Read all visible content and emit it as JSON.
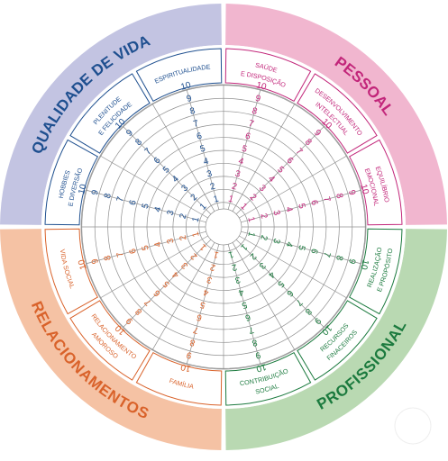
{
  "quadrants": [
    {
      "key": "qualidade",
      "label": "QUALIDADE DE VIDA",
      "fill": "#c3c4e2",
      "ink": "#1e4f8f"
    },
    {
      "key": "pessoal",
      "label": "PESSOAL",
      "fill": "#f1b6cf",
      "ink": "#c2267a"
    },
    {
      "key": "profissional",
      "label": "PROFISSIONAL",
      "fill": "#b9d9b2",
      "ink": "#1b7a3e"
    },
    {
      "key": "relacionamentos",
      "label": "RELACIONAMENTOS",
      "fill": "#f5c2a4",
      "ink": "#d9622a"
    }
  ],
  "areas": [
    {
      "label1": "SAÚDE",
      "label2": "E DISPOSIÇÃO",
      "ink": "#c2267a"
    },
    {
      "label1": "DESENVOLVIMENTO",
      "label2": "INTELECTUAL",
      "ink": "#c2267a"
    },
    {
      "label1": "EQUILÍBRIO",
      "label2": "EMOCIONAL",
      "ink": "#c2267a"
    },
    {
      "label1": "REALIZAÇÃO",
      "label2": "E PROPÓSITO",
      "ink": "#1b7a3e"
    },
    {
      "label1": "RECURSOS",
      "label2": "FINACEIROS",
      "ink": "#1b7a3e"
    },
    {
      "label1": "CONTRIBUIÇÃO",
      "label2": "SOCIAL",
      "ink": "#1b7a3e"
    },
    {
      "label1": "FAMÍLIA",
      "label2": "",
      "ink": "#d9622a"
    },
    {
      "label1": "RELACIONAMENTO",
      "label2": "AMOROSO",
      "ink": "#d9622a"
    },
    {
      "label1": "VIDA SOCIAL",
      "label2": "",
      "ink": "#d9622a"
    },
    {
      "label1": "HOBBIES",
      "label2": "E DIVERSÃO",
      "ink": "#1e4f8f"
    },
    {
      "label1": "PLENITUDE",
      "label2": "E FELICIDADE",
      "ink": "#1e4f8f"
    },
    {
      "label1": "ESPIRITUALIDADE",
      "label2": "",
      "ink": "#1e4f8f"
    }
  ],
  "scale": [
    "1",
    "2",
    "3",
    "4",
    "5",
    "6",
    "7",
    "8",
    "9",
    "10"
  ],
  "corner_button": {
    "color": "#ffffff"
  }
}
